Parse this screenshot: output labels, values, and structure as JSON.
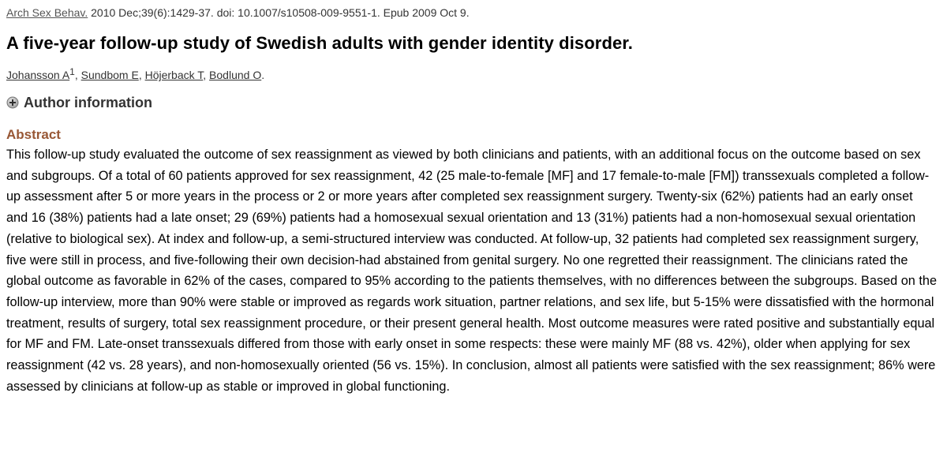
{
  "citation": {
    "journal": "Arch Sex Behav.",
    "details": "2010 Dec;39(6):1429-37. doi: 10.1007/s10508-009-9551-1. Epub 2009 Oct 9."
  },
  "title": "A five-year follow-up study of Swedish adults with gender identity disorder.",
  "authors": [
    {
      "name": "Johansson A",
      "sup": "1"
    },
    {
      "name": "Sundbom E"
    },
    {
      "name": "Höjerback T"
    },
    {
      "name": "Bodlund O"
    }
  ],
  "author_info": {
    "label": "Author information"
  },
  "abstract": {
    "heading": "Abstract",
    "text": "This follow-up study evaluated the outcome of sex reassignment as viewed by both clinicians and patients, with an additional focus on the outcome based on sex and subgroups. Of a total of 60 patients approved for sex reassignment, 42 (25 male-to-female [MF] and 17 female-to-male [FM]) transsexuals completed a follow-up assessment after 5 or more years in the process or 2 or more years after completed sex reassignment surgery. Twenty-six (62%) patients had an early onset and 16 (38%) patients had a late onset; 29 (69%) patients had a homosexual sexual orientation and 13 (31%) patients had a non-homosexual sexual orientation (relative to biological sex). At index and follow-up, a semi-structured interview was conducted. At follow-up, 32 patients had completed sex reassignment surgery, five were still in process, and five-following their own decision-had abstained from genital surgery. No one regretted their reassignment. The clinicians rated the global outcome as favorable in 62% of the cases, compared to 95% according to the patients themselves, with no differences between the subgroups. Based on the follow-up interview, more than 90% were stable or improved as regards work situation, partner relations, and sex life, but 5-15% were dissatisfied with the hormonal treatment, results of surgery, total sex reassignment procedure, or their present general health. Most outcome measures were rated positive and substantially equal for MF and FM. Late-onset transsexuals differed from those with early onset in some respects: these were mainly MF (88 vs. 42%), older when applying for sex reassignment (42 vs. 28 years), and non-homosexually oriented (56 vs. 15%). In conclusion, almost all patients were satisfied with the sex reassignment; 86% were assessed by clinicians at follow-up as stable or improved in global functioning."
  },
  "colors": {
    "abstract_heading": "#985735",
    "link": "#555555"
  },
  "icons": {
    "expand": "plus-circle-icon"
  }
}
